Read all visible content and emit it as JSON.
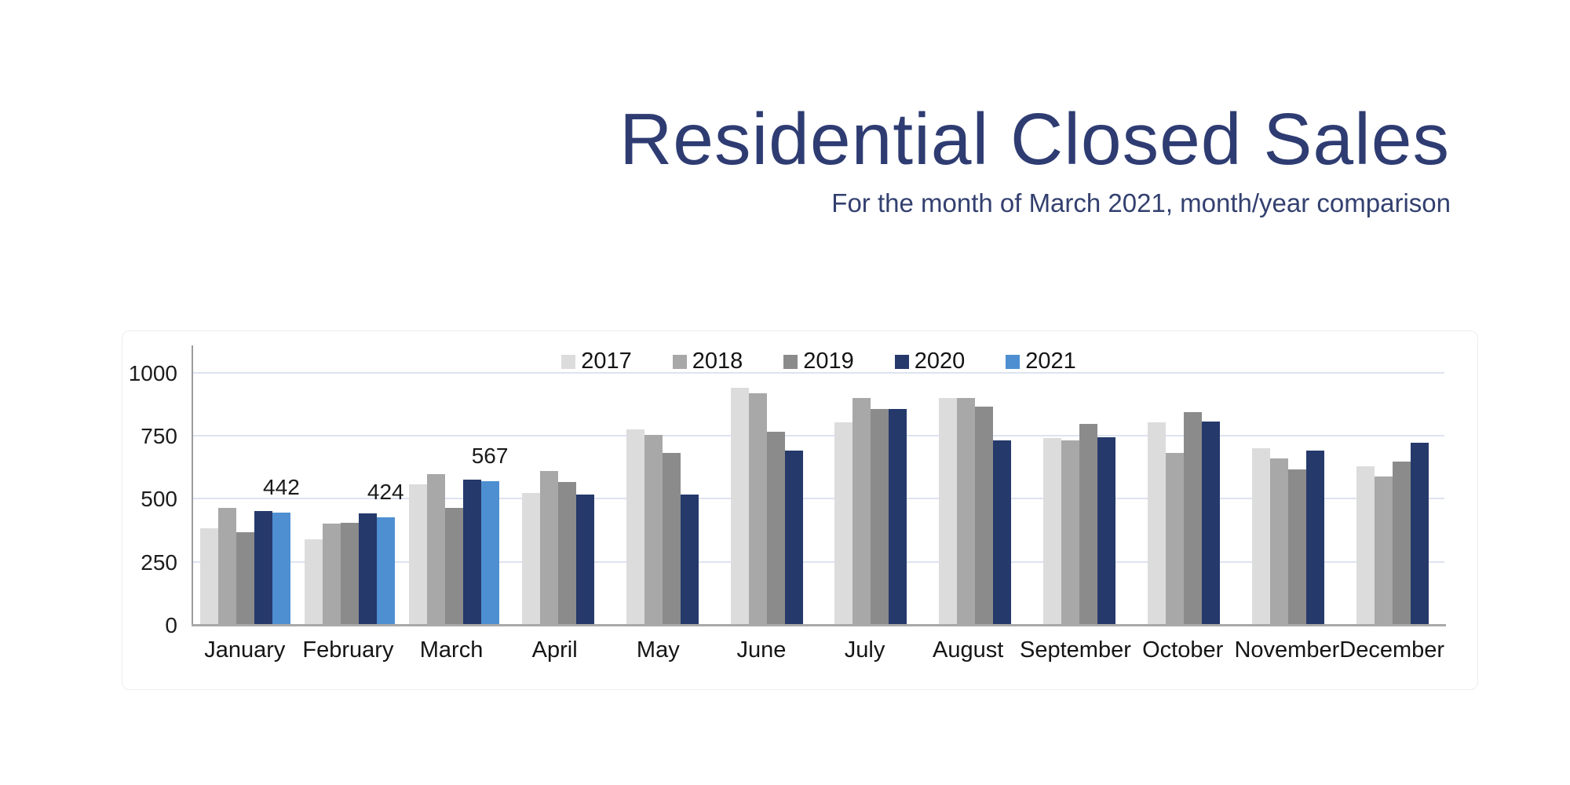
{
  "header": {
    "title": "Residential Closed Sales",
    "subtitle": "For the month of March 2021, month/year comparison",
    "title_color": "#2e3c72"
  },
  "chart_data": {
    "type": "bar",
    "title": "Residential Closed Sales",
    "subtitle": "For the month of March 2021, month/year comparison",
    "categories": [
      "January",
      "February",
      "March",
      "April",
      "May",
      "June",
      "July",
      "August",
      "September",
      "October",
      "November",
      "December"
    ],
    "series": [
      {
        "name": "2017",
        "color": "#dcdcdc",
        "values": [
          380,
          338,
          553,
          521,
          772,
          938,
          801,
          896,
          739,
          802,
          698,
          627
        ],
        "data_labels": false
      },
      {
        "name": "2018",
        "color": "#a8a8a8",
        "values": [
          462,
          400,
          595,
          606,
          750,
          916,
          896,
          896,
          730,
          679,
          656,
          587
        ],
        "data_labels": false
      },
      {
        "name": "2019",
        "color": "#8b8b8b",
        "values": [
          366,
          403,
          461,
          563,
          680,
          763,
          855,
          863,
          793,
          842,
          613,
          646
        ],
        "data_labels": false
      },
      {
        "name": "2020",
        "color": "#25396b",
        "values": [
          450,
          440,
          574,
          515,
          513,
          690,
          855,
          729,
          740,
          803,
          688,
          719
        ],
        "data_labels": false
      },
      {
        "name": "2021",
        "color": "#4d8fd1",
        "values": [
          442,
          424,
          567,
          null,
          null,
          null,
          null,
          null,
          null,
          null,
          null,
          null
        ],
        "data_labels": true
      }
    ],
    "labeled_values": [
      {
        "category": "January",
        "series": "2021",
        "label": "442"
      },
      {
        "category": "February",
        "series": "2021",
        "label": "424"
      },
      {
        "category": "March",
        "series": "2021",
        "label": "567"
      }
    ],
    "y_ticks": [
      0,
      250,
      500,
      750,
      1000
    ],
    "ylim": [
      0,
      1100
    ],
    "grid": "horizontal",
    "legend_position": "top-center",
    "gridline_color": "#dde3f0",
    "axis_color": "#9b9b9b"
  }
}
